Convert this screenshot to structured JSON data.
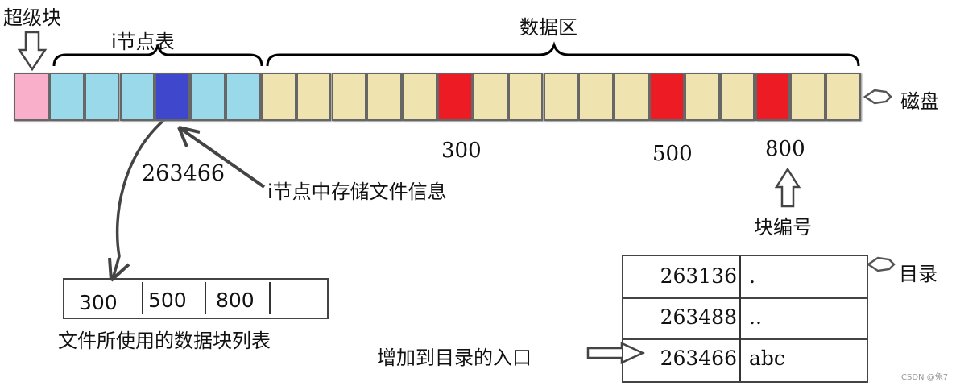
{
  "labels": {
    "superblock": "超级块",
    "inode_table": "i节点表",
    "data_area": "数据区",
    "disk": "磁盘",
    "inode_number": "263466",
    "inode_info": "i节点中存储文件信息",
    "block_number_caption": "块编号",
    "block_list_caption": "文件所使用的数据块列表",
    "directory": "目录",
    "add_entry": "增加到目录的入口"
  },
  "block_numbers": [
    "300",
    "500",
    "800"
  ],
  "disk_blocks": [
    "super",
    "inode",
    "inode",
    "inode",
    "inode-active",
    "inode",
    "inode",
    "data",
    "data",
    "data",
    "data",
    "data",
    "data-used",
    "data",
    "data",
    "data",
    "data",
    "data",
    "data-used",
    "data",
    "data",
    "data-used",
    "data",
    "data"
  ],
  "colors": {
    "super": "#f9afc9",
    "inode": "#99d9ea",
    "inode-active": "#3f48cc",
    "data": "#efe4b0",
    "data-used": "#ed1c24"
  },
  "block_list": [
    "300",
    "500",
    "800",
    ""
  ],
  "directory_entries": [
    {
      "inode": "263136",
      "name": "."
    },
    {
      "inode": "263488",
      "name": ".."
    },
    {
      "inode": "263466",
      "name": "abc"
    }
  ],
  "watermark": "CSDN @兔7"
}
